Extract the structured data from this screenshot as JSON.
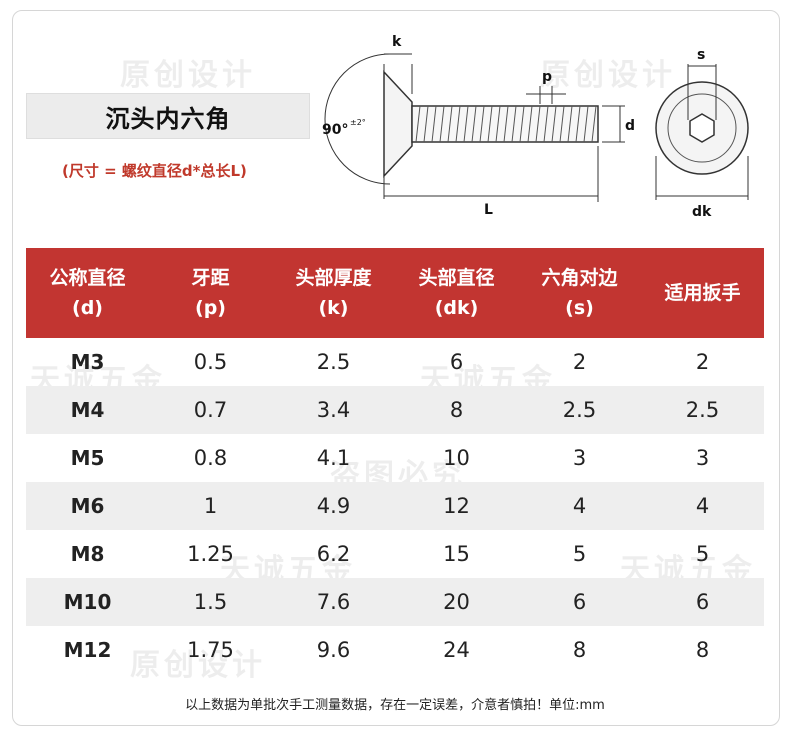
{
  "title": "沉头内六角",
  "subtitle": "(尺寸 = 螺纹直径d*总长L)",
  "diagram_labels": {
    "k": "k",
    "p": "p",
    "d": "d",
    "L": "L",
    "angle": "90°",
    "angle_tol": "±2°",
    "s": "s",
    "dk": "dk"
  },
  "watermarks": [
    "原创设计",
    "盗图必究",
    "天诚五金"
  ],
  "table": {
    "headers": [
      {
        "line1": "公称直径",
        "line2": "(d)"
      },
      {
        "line1": "牙距",
        "line2": "(p)"
      },
      {
        "line1": "头部厚度",
        "line2": "(k)"
      },
      {
        "line1": "头部直径",
        "line2": "(dk)"
      },
      {
        "line1": "六角对边",
        "line2": "(s)"
      },
      {
        "line1": "适用扳手",
        "line2": ""
      }
    ],
    "rows": [
      [
        "M3",
        "0.5",
        "2.5",
        "6",
        "2",
        "2"
      ],
      [
        "M4",
        "0.7",
        "3.4",
        "8",
        "2.5",
        "2.5"
      ],
      [
        "M5",
        "0.8",
        "4.1",
        "10",
        "3",
        "3"
      ],
      [
        "M6",
        "1",
        "4.9",
        "12",
        "4",
        "4"
      ],
      [
        "M8",
        "1.25",
        "6.2",
        "15",
        "5",
        "5"
      ],
      [
        "M10",
        "1.5",
        "7.6",
        "20",
        "6",
        "6"
      ],
      [
        "M12",
        "1.75",
        "9.6",
        "24",
        "8",
        "8"
      ]
    ]
  },
  "footer": "以上数据为单批次手工测量数据，存在一定误差，介意者慎拍！单位:mm",
  "colors": {
    "header_bg": "#c23531",
    "subtitle": "#c0392b",
    "row_alt": "#eeeeee"
  }
}
